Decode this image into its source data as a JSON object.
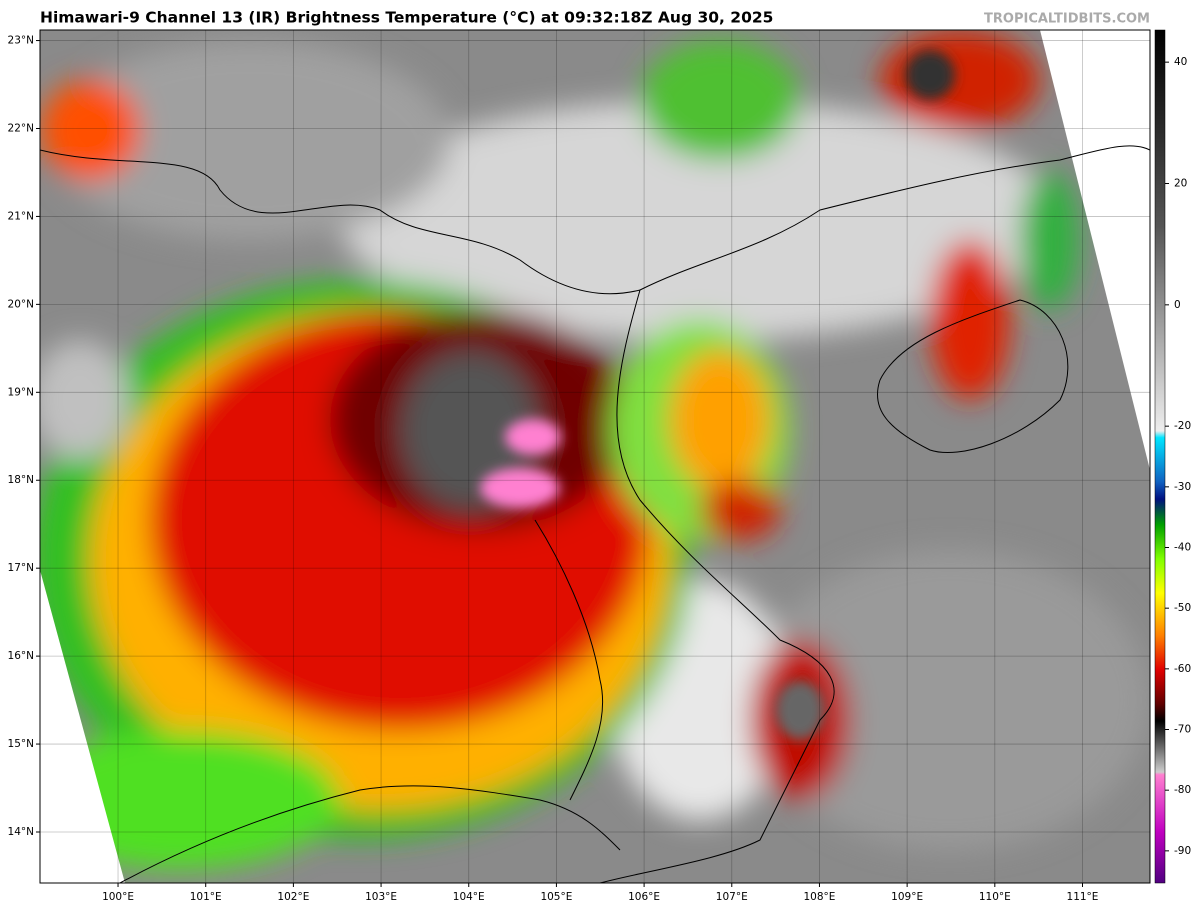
{
  "header": {
    "title": "Himawari-9 Channel 13 (IR) Brightness Temperature (°C) at 09:32:18Z Aug 30, 2025",
    "watermark": "TROPICALTIDBITS.COM"
  },
  "map": {
    "lat_ticks": [
      {
        "value": 23,
        "label": "23°N"
      },
      {
        "value": 22,
        "label": "22°N"
      },
      {
        "value": 21,
        "label": "21°N"
      },
      {
        "value": 20,
        "label": "20°N"
      },
      {
        "value": 19,
        "label": "19°N"
      },
      {
        "value": 18,
        "label": "18°N"
      },
      {
        "value": 17,
        "label": "17°N"
      },
      {
        "value": 16,
        "label": "16°N"
      },
      {
        "value": 15,
        "label": "15°N"
      },
      {
        "value": 14,
        "label": "14°N"
      }
    ],
    "lon_ticks": [
      {
        "value": 100,
        "label": "100°E"
      },
      {
        "value": 101,
        "label": "101°E"
      },
      {
        "value": 102,
        "label": "102°E"
      },
      {
        "value": 103,
        "label": "103°E"
      },
      {
        "value": 104,
        "label": "104°E"
      },
      {
        "value": 105,
        "label": "105°E"
      },
      {
        "value": 106,
        "label": "106°E"
      },
      {
        "value": 107,
        "label": "107°E"
      },
      {
        "value": 108,
        "label": "108°E"
      },
      {
        "value": 109,
        "label": "109°E"
      },
      {
        "value": 110,
        "label": "110°E"
      },
      {
        "value": 111,
        "label": "111°E"
      }
    ],
    "lonlim": [
      99.11,
      111.77
    ],
    "latlim": [
      13.42,
      23.12
    ]
  },
  "colorbar": {
    "ticks": [
      40,
      20,
      0,
      -20,
      -30,
      -40,
      -50,
      -60,
      -70,
      -80,
      -90
    ],
    "range": [
      -95.3,
      45.3
    ]
  }
}
